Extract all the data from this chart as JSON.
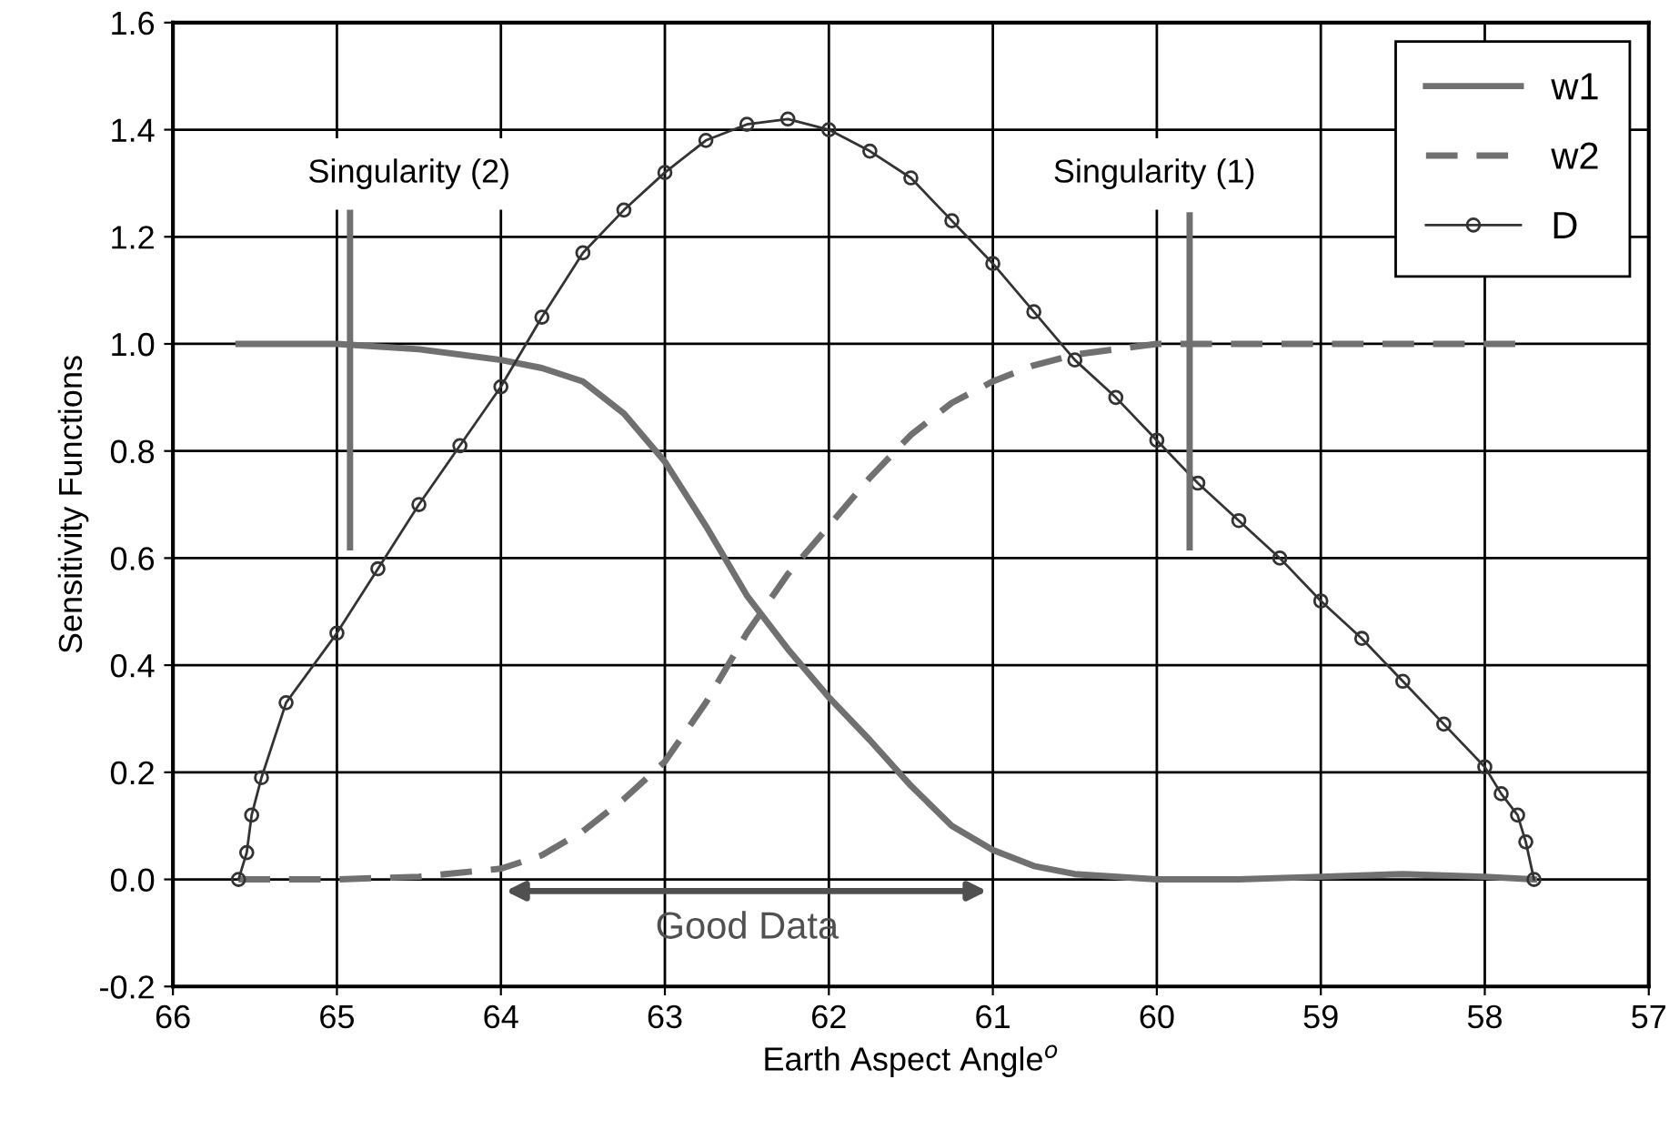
{
  "chart_data": {
    "type": "line",
    "xlabel": "Earth Aspect Angle$^{o}$",
    "ylabel": "Sensitivity Functions",
    "xlim": [
      66,
      57
    ],
    "xticks": [
      66,
      65,
      64,
      63,
      62,
      61,
      60,
      59,
      58,
      57
    ],
    "ylim": [
      -0.2,
      1.6
    ],
    "yticks": [
      {
        "value": -0.2,
        "label": "-0.2"
      },
      {
        "value": 0,
        "label": "0.0"
      },
      {
        "value": 0.2,
        "label": "0.2"
      },
      {
        "value": 0.4,
        "label": "0.4"
      },
      {
        "value": 0.6,
        "label": "0.6"
      },
      {
        "value": 0.8,
        "label": "0.8"
      },
      {
        "value": 1.0,
        "label": "1.0"
      },
      {
        "value": 1.2,
        "label": "1.2"
      },
      {
        "value": 1.4,
        "label": "1.4"
      },
      {
        "value": 1.6,
        "label": "1.6"
      }
    ],
    "grid": true,
    "legend": "top right",
    "series": [
      {
        "name": "w1",
        "color": "#707070",
        "line_style": "solid",
        "marker": "none",
        "x": [
          65.6,
          65.0,
          64.5,
          64.0,
          63.75,
          63.5,
          63.25,
          63.0,
          62.75,
          62.5,
          62.25,
          62.0,
          61.75,
          61.5,
          61.25,
          61.0,
          60.75,
          60.5,
          60.0,
          59.5,
          59.0,
          58.5,
          58.0,
          57.7
        ],
        "values": [
          1.0,
          1.0,
          0.99,
          0.97,
          0.955,
          0.93,
          0.87,
          0.78,
          0.66,
          0.53,
          0.43,
          0.34,
          0.26,
          0.175,
          0.1,
          0.055,
          0.025,
          0.01,
          0.0,
          0.0,
          0.005,
          0.01,
          0.005,
          0.0
        ]
      },
      {
        "name": "w2",
        "color": "#707070",
        "line_style": "dashed",
        "marker": "none",
        "x": [
          65.6,
          65.0,
          64.5,
          64.0,
          63.75,
          63.5,
          63.25,
          63.0,
          62.75,
          62.5,
          62.25,
          62.0,
          61.75,
          61.5,
          61.25,
          61.0,
          60.75,
          60.5,
          60.0,
          59.5,
          59.0,
          58.5,
          58.0,
          57.8
        ],
        "values": [
          0.0,
          0.0,
          0.005,
          0.02,
          0.045,
          0.09,
          0.15,
          0.22,
          0.33,
          0.46,
          0.57,
          0.66,
          0.75,
          0.83,
          0.89,
          0.93,
          0.96,
          0.98,
          1.0,
          1.0,
          1.0,
          1.0,
          1.0,
          1.0
        ]
      },
      {
        "name": "D",
        "color": "#333333",
        "line_style": "solid",
        "marker": "circle",
        "x": [
          65.6,
          65.55,
          65.52,
          65.46,
          65.31,
          65.0,
          64.75,
          64.5,
          64.25,
          64.0,
          63.75,
          63.5,
          63.25,
          63.0,
          62.75,
          62.5,
          62.25,
          62.0,
          61.75,
          61.5,
          61.25,
          61.0,
          60.75,
          60.5,
          60.25,
          60.0,
          59.75,
          59.5,
          59.25,
          59.0,
          58.75,
          58.5,
          58.25,
          58.0,
          57.9,
          57.8,
          57.75,
          57.7
        ],
        "values": [
          0.0,
          0.05,
          0.12,
          0.19,
          0.33,
          0.46,
          0.58,
          0.7,
          0.81,
          0.92,
          1.05,
          1.17,
          1.25,
          1.32,
          1.38,
          1.41,
          1.42,
          1.4,
          1.36,
          1.31,
          1.23,
          1.15,
          1.06,
          0.97,
          0.9,
          0.82,
          0.74,
          0.67,
          0.6,
          0.52,
          0.45,
          0.37,
          0.29,
          0.21,
          0.16,
          0.12,
          0.07,
          0.0
        ]
      },
      {
        "color": "#707070",
        "line_style": "solid",
        "marker": "none",
        "x": [
          64.92,
          64.92
        ],
        "values": [
          0.62,
          1.25
        ]
      },
      {
        "color": "#707070",
        "line_style": "solid",
        "marker": "none",
        "x": [
          59.8,
          59.8
        ],
        "values": [
          0.62,
          1.24
        ]
      }
    ],
    "annotations": [
      "Singularity (2)",
      "Singularity (1)",
      "Good Data"
    ]
  }
}
